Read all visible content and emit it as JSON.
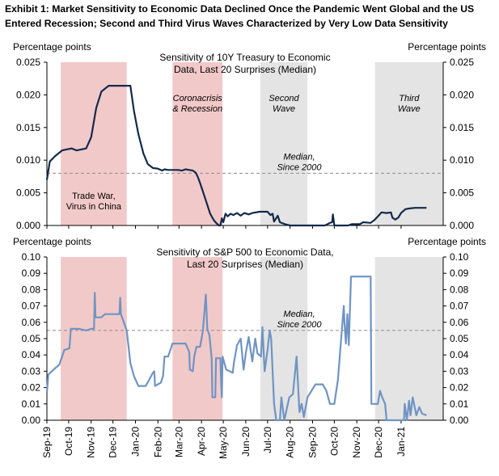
{
  "exhibit": {
    "title": "Exhibit 1: Market Sensitivity to Economic Data Declined Once the Pandemic Went Global and the US Entered Recession; Second and Third Virus Waves Characterized by Very Low Data Sensitivity"
  },
  "colors": {
    "treasury_line": "#13294b",
    "sp500_line": "#6f94c3",
    "shade_pink": "#f2c9c9",
    "shade_gray": "#e4e4e4",
    "median_line": "#8c8c8c",
    "axis": "#000000"
  },
  "x_axis": {
    "tick_labels": [
      "Sep-19",
      "Oct-19",
      "Nov-19",
      "Dec-19",
      "Jan-20",
      "Feb-20",
      "Mar-20",
      "Apr-20",
      "May-20",
      "Jun-20",
      "Jul-20",
      "Aug-20",
      "Sep-20",
      "Oct-20",
      "Nov-20",
      "Dec-20",
      "Jan-21"
    ]
  },
  "chart_data": [
    {
      "type": "line",
      "title": "Sensitivity of 10Y Treasury to Economic Data, Last 20 Surprises (Median)",
      "title_lines": [
        "Sensitivity of 10Y Treasury to Economic",
        "Data, Last 20 Surprises (Median)"
      ],
      "ylabel_left": "Percentage points",
      "ylabel_right": "Percentage points",
      "ylim": [
        0,
        0.025
      ],
      "yticks": [
        "0.000",
        "0.005",
        "0.010",
        "0.015",
        "0.020",
        "0.025"
      ],
      "xlim": [
        "2019-09-01",
        "2021-02-28"
      ],
      "median": {
        "value": 0.008,
        "label_lines": [
          "Median,",
          "Since 2000"
        ]
      },
      "shaded_periods": [
        {
          "start": "2019-09-20",
          "end": "2019-12-20",
          "color": "pink",
          "label_lines": [
            "Trade War,",
            "Virus in China"
          ],
          "label_position": "bottom"
        },
        {
          "start": "2020-02-21",
          "end": "2020-04-30",
          "color": "pink",
          "label_lines": [
            "Coronacrisis",
            "& Recession"
          ],
          "label_position": "top"
        },
        {
          "start": "2020-06-21",
          "end": "2020-08-25",
          "color": "gray",
          "label_lines": [
            "Second",
            "Wave"
          ],
          "label_position": "top"
        },
        {
          "start": "2020-11-26",
          "end": "2021-02-28",
          "color": "gray",
          "label_lines": [
            "Third",
            "Wave"
          ],
          "label_position": "top"
        }
      ],
      "series": [
        {
          "points": [
            [
              "2019-09-01",
              0.007
            ],
            [
              "2019-09-05",
              0.0098
            ],
            [
              "2019-09-12",
              0.0106
            ],
            [
              "2019-09-22",
              0.0115
            ],
            [
              "2019-10-05",
              0.0118
            ],
            [
              "2019-10-12",
              0.0115
            ],
            [
              "2019-10-25",
              0.0118
            ],
            [
              "2019-11-01",
              0.0135
            ],
            [
              "2019-11-08",
              0.018
            ],
            [
              "2019-11-15",
              0.0205
            ],
            [
              "2019-11-25",
              0.0214
            ],
            [
              "2019-12-10",
              0.0214
            ],
            [
              "2019-12-25",
              0.0214
            ],
            [
              "2019-12-30",
              0.0175
            ],
            [
              "2020-01-05",
              0.014
            ],
            [
              "2020-01-12",
              0.011
            ],
            [
              "2020-01-18",
              0.0094
            ],
            [
              "2020-01-25",
              0.0088
            ],
            [
              "2020-02-01",
              0.0087
            ],
            [
              "2020-02-07",
              0.0084
            ],
            [
              "2020-02-10",
              0.0086
            ],
            [
              "2020-02-15",
              0.0085
            ],
            [
              "2020-02-22",
              0.0085
            ],
            [
              "2020-02-29",
              0.0085
            ],
            [
              "2020-03-05",
              0.0084
            ],
            [
              "2020-03-10",
              0.0086
            ],
            [
              "2020-03-15",
              0.0085
            ],
            [
              "2020-03-20",
              0.0084
            ],
            [
              "2020-03-24",
              0.0081
            ],
            [
              "2020-03-27",
              0.0074
            ],
            [
              "2020-03-30",
              0.0065
            ],
            [
              "2020-04-03",
              0.0052
            ],
            [
              "2020-04-08",
              0.0035
            ],
            [
              "2020-04-13",
              0.0018
            ],
            [
              "2020-04-18",
              0.0008
            ],
            [
              "2020-04-22",
              0.0003
            ],
            [
              "2020-04-25",
              0.0
            ],
            [
              "2020-04-27",
              0.0
            ],
            [
              "2020-04-29",
              0.0011
            ],
            [
              "2020-05-01",
              0.0005
            ],
            [
              "2020-05-04",
              0.0018
            ],
            [
              "2020-05-07",
              0.0014
            ],
            [
              "2020-05-11",
              0.0018
            ],
            [
              "2020-05-15",
              0.0016
            ],
            [
              "2020-05-20",
              0.0019
            ],
            [
              "2020-05-25",
              0.0015
            ],
            [
              "2020-05-30",
              0.0019
            ],
            [
              "2020-06-05",
              0.0017
            ],
            [
              "2020-06-10",
              0.0019
            ],
            [
              "2020-06-20",
              0.0021
            ],
            [
              "2020-07-01",
              0.0021
            ],
            [
              "2020-07-05",
              0.0016
            ],
            [
              "2020-07-08",
              0.0018
            ],
            [
              "2020-07-10",
              0.0006
            ],
            [
              "2020-07-15",
              0.0015
            ],
            [
              "2020-07-18",
              0.0005
            ],
            [
              "2020-07-25",
              0.0002
            ],
            [
              "2020-08-01",
              0.0
            ],
            [
              "2020-08-25",
              0.0
            ],
            [
              "2020-09-01",
              0.0
            ],
            [
              "2020-09-10",
              0.0
            ],
            [
              "2020-09-18",
              0.0
            ],
            [
              "2020-09-25",
              0.0004
            ],
            [
              "2020-09-28",
              0.0005
            ],
            [
              "2020-09-29",
              0.0017
            ],
            [
              "2020-10-01",
              0.0
            ],
            [
              "2020-10-10",
              0.0
            ],
            [
              "2020-10-20",
              0.0
            ],
            [
              "2020-10-25",
              0.0002
            ],
            [
              "2020-11-05",
              0.0002
            ],
            [
              "2020-11-10",
              0.0005
            ],
            [
              "2020-11-20",
              0.0004
            ],
            [
              "2020-11-25",
              0.0008
            ],
            [
              "2020-12-01",
              0.0015
            ],
            [
              "2020-12-05",
              0.002
            ],
            [
              "2020-12-12",
              0.0019
            ],
            [
              "2020-12-18",
              0.002
            ],
            [
              "2020-12-20",
              0.0012
            ],
            [
              "2020-12-24",
              0.0009
            ],
            [
              "2020-12-28",
              0.0012
            ],
            [
              "2021-01-01",
              0.0019
            ],
            [
              "2021-01-07",
              0.0025
            ],
            [
              "2021-01-12",
              0.0026
            ],
            [
              "2021-01-20",
              0.0027
            ],
            [
              "2021-01-28",
              0.0027
            ],
            [
              "2021-02-05",
              0.0027
            ]
          ]
        }
      ]
    },
    {
      "type": "line",
      "title": "Sensitivity of S&P 500 to Economic Data, Last 20 Surprises (Median)",
      "title_lines": [
        "Sensitivity of S&P 500 to Economic Data,",
        "Last 20 Surprises (Median)"
      ],
      "ylabel_left": "Percentage points",
      "ylabel_right": "Percentage points",
      "ylim": [
        0,
        0.1
      ],
      "yticks": [
        "0.00",
        "0.01",
        "0.02",
        "0.03",
        "0.04",
        "0.05",
        "0.06",
        "0.07",
        "0.08",
        "0.09",
        "0.10"
      ],
      "xlim": [
        "2019-09-01",
        "2021-02-28"
      ],
      "median": {
        "value": 0.055,
        "label_lines": [
          "Median,",
          "Since 2000"
        ]
      },
      "shaded_periods": [
        {
          "start": "2019-09-20",
          "end": "2019-12-20",
          "color": "pink"
        },
        {
          "start": "2020-02-21",
          "end": "2020-04-30",
          "color": "pink"
        },
        {
          "start": "2020-06-21",
          "end": "2020-08-25",
          "color": "gray"
        },
        {
          "start": "2020-11-26",
          "end": "2021-02-28",
          "color": "gray"
        }
      ],
      "series": [
        {
          "points": [
            [
              "2019-09-01",
              0.017
            ],
            [
              "2019-09-03",
              0.028
            ],
            [
              "2019-09-10",
              0.031
            ],
            [
              "2019-09-18",
              0.034
            ],
            [
              "2019-09-25",
              0.043
            ],
            [
              "2019-10-02",
              0.044
            ],
            [
              "2019-10-04",
              0.056
            ],
            [
              "2019-10-15",
              0.056
            ],
            [
              "2019-10-25",
              0.055
            ],
            [
              "2019-11-01",
              0.056
            ],
            [
              "2019-11-05",
              0.056
            ],
            [
              "2019-11-06",
              0.078
            ],
            [
              "2019-11-07",
              0.063
            ],
            [
              "2019-11-15",
              0.063
            ],
            [
              "2019-11-20",
              0.065
            ],
            [
              "2019-12-05",
              0.065
            ],
            [
              "2019-12-10",
              0.065
            ],
            [
              "2019-12-11",
              0.075
            ],
            [
              "2019-12-12",
              0.065
            ],
            [
              "2019-12-20",
              0.055
            ],
            [
              "2019-12-25",
              0.035
            ],
            [
              "2019-12-30",
              0.027
            ],
            [
              "2020-01-05",
              0.021
            ],
            [
              "2020-01-15",
              0.021
            ],
            [
              "2020-01-19",
              0.024
            ],
            [
              "2020-01-25",
              0.029
            ],
            [
              "2020-01-27",
              0.03
            ],
            [
              "2020-01-28",
              0.021
            ],
            [
              "2020-02-05",
              0.023
            ],
            [
              "2020-02-08",
              0.027
            ],
            [
              "2020-02-10",
              0.039
            ],
            [
              "2020-02-15",
              0.039
            ],
            [
              "2020-02-21",
              0.047
            ],
            [
              "2020-03-05",
              0.047
            ],
            [
              "2020-03-10",
              0.047
            ],
            [
              "2020-03-15",
              0.042
            ],
            [
              "2020-03-16",
              0.031
            ],
            [
              "2020-03-20",
              0.03
            ],
            [
              "2020-03-22",
              0.039
            ],
            [
              "2020-03-25",
              0.045
            ],
            [
              "2020-03-30",
              0.045
            ],
            [
              "2020-04-01",
              0.05
            ],
            [
              "2020-04-03",
              0.055
            ],
            [
              "2020-04-07",
              0.077
            ],
            [
              "2020-04-09",
              0.056
            ],
            [
              "2020-04-12",
              0.052
            ],
            [
              "2020-04-15",
              0.038
            ],
            [
              "2020-04-16",
              0.014
            ],
            [
              "2020-04-20",
              0.014
            ],
            [
              "2020-04-21",
              0.038
            ],
            [
              "2020-04-27",
              0.038
            ],
            [
              "2020-04-28",
              0.023
            ],
            [
              "2020-04-29",
              0.014
            ],
            [
              "2020-04-30",
              0.039
            ],
            [
              "2020-05-05",
              0.031
            ],
            [
              "2020-05-10",
              0.03
            ],
            [
              "2020-05-14",
              0.029
            ],
            [
              "2020-05-16",
              0.036
            ],
            [
              "2020-05-20",
              0.046
            ],
            [
              "2020-05-25",
              0.05
            ],
            [
              "2020-05-29",
              0.031
            ],
            [
              "2020-06-01",
              0.041
            ],
            [
              "2020-06-05",
              0.051
            ],
            [
              "2020-06-08",
              0.042
            ],
            [
              "2020-06-10",
              0.036
            ],
            [
              "2020-06-14",
              0.05
            ],
            [
              "2020-06-17",
              0.041
            ],
            [
              "2020-06-22",
              0.039
            ],
            [
              "2020-06-24",
              0.057
            ],
            [
              "2020-06-27",
              0.03
            ],
            [
              "2020-07-01",
              0.043
            ],
            [
              "2020-07-04",
              0.055
            ],
            [
              "2020-07-06",
              0.05
            ],
            [
              "2020-07-10",
              0.01
            ],
            [
              "2020-07-13",
              0.0
            ],
            [
              "2020-07-18",
              0.0
            ],
            [
              "2020-07-20",
              0.014
            ],
            [
              "2020-07-24",
              0.0
            ],
            [
              "2020-07-31",
              0.014
            ],
            [
              "2020-08-05",
              0.016
            ],
            [
              "2020-08-10",
              0.039
            ],
            [
              "2020-08-14",
              0.005
            ],
            [
              "2020-08-17",
              0.01
            ],
            [
              "2020-08-20",
              0.002
            ],
            [
              "2020-08-25",
              0.014
            ],
            [
              "2020-09-05",
              0.022
            ],
            [
              "2020-09-15",
              0.022
            ],
            [
              "2020-09-20",
              0.018
            ],
            [
              "2020-09-25",
              0.01
            ],
            [
              "2020-10-01",
              0.01
            ],
            [
              "2020-10-06",
              0.025
            ],
            [
              "2020-10-10",
              0.048
            ],
            [
              "2020-10-14",
              0.07
            ],
            [
              "2020-10-15",
              0.06
            ],
            [
              "2020-10-17",
              0.047
            ],
            [
              "2020-10-19",
              0.065
            ],
            [
              "2020-10-21",
              0.046
            ],
            [
              "2020-10-24",
              0.088
            ],
            [
              "2020-11-15",
              0.088
            ],
            [
              "2020-11-20",
              0.088
            ],
            [
              "2020-11-21",
              0.01
            ],
            [
              "2020-11-25",
              0.01
            ],
            [
              "2020-11-30",
              0.01
            ],
            [
              "2020-12-03",
              0.018
            ],
            [
              "2020-12-06",
              0.014
            ],
            [
              "2020-12-10",
              0.01
            ],
            [
              "2020-12-12",
              0.0
            ],
            [
              "2020-12-25",
              0.0
            ],
            [
              "2021-01-05",
              0.0
            ],
            [
              "2021-01-06",
              0.01
            ],
            [
              "2021-01-09",
              0.0
            ],
            [
              "2021-01-12",
              0.012
            ],
            [
              "2021-01-14",
              0.003
            ],
            [
              "2021-01-17",
              0.014
            ],
            [
              "2021-01-22",
              0.003
            ],
            [
              "2021-01-26",
              0.008
            ],
            [
              "2021-01-30",
              0.004
            ],
            [
              "2021-02-05",
              0.003
            ]
          ]
        }
      ]
    }
  ]
}
